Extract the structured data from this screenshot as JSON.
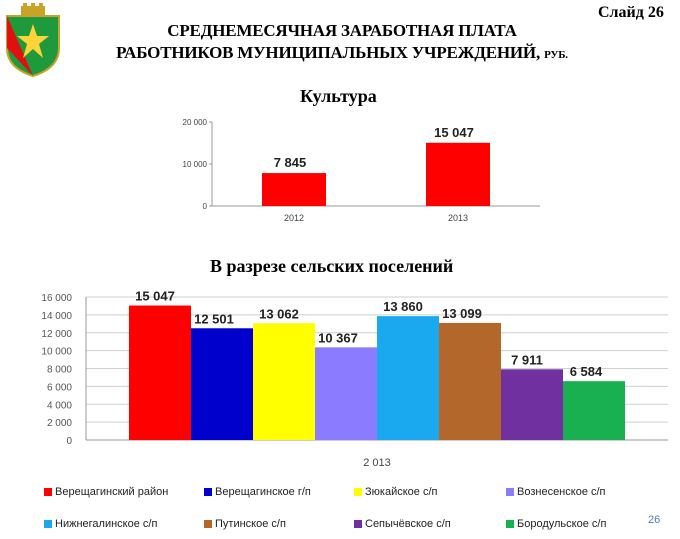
{
  "slide": {
    "label": "Слайд 26",
    "page_number": "26"
  },
  "title": {
    "line1": "СРЕДНЕМЕСЯЧНАЯ ЗАРАБОТНАЯ ПЛАТА",
    "line2": "РАБОТНИКОВ МУНИЦИПАЛЬНЫХ УЧРЕЖДЕНИЙ,",
    "unit": "РУБ."
  },
  "chart_data": [
    {
      "type": "bar",
      "title": "Культура",
      "categories": [
        "2012",
        "2013"
      ],
      "values": [
        7845,
        15047
      ],
      "data_labels": [
        "7 845",
        "15 047"
      ],
      "ylim": [
        0,
        20000
      ],
      "yticks": [
        0,
        10000,
        20000
      ],
      "ytick_labels": [
        "0",
        "10 000",
        "20 000"
      ],
      "color": "#ff0000",
      "grid": false
    },
    {
      "type": "bar",
      "title": "В разрезе сельских поселений",
      "categories": [
        "2 013"
      ],
      "series": [
        {
          "name": "Верещагинский район",
          "values": [
            15047
          ],
          "label": "15 047",
          "color": "#ff0000"
        },
        {
          "name": "Верещагинское г/п",
          "values": [
            12501
          ],
          "label": "12 501",
          "color": "#0000cc"
        },
        {
          "name": "Зюкайское с/п",
          "values": [
            13062
          ],
          "label": "13 062",
          "color": "#ffff00"
        },
        {
          "name": "Вознесенское с/п",
          "values": [
            10367
          ],
          "label": "10 367",
          "color": "#8b7bff"
        },
        {
          "name": "Нижнегалинское с/п",
          "values": [
            13860
          ],
          "label": "13 860",
          "color": "#1aa8ee"
        },
        {
          "name": "Путинское с/п",
          "values": [
            13099
          ],
          "label": "13 099",
          "color": "#b4672a"
        },
        {
          "name": "Сепычёвское с/п",
          "values": [
            7911
          ],
          "label": "7 911",
          "color": "#7030a0"
        },
        {
          "name": "Бородульское с/п",
          "values": [
            6584
          ],
          "label": "6 584",
          "color": "#18b050"
        }
      ],
      "ylim": [
        0,
        16000
      ],
      "yticks": [
        0,
        2000,
        4000,
        6000,
        8000,
        10000,
        12000,
        14000,
        16000
      ],
      "ytick_labels": [
        "0",
        "2 000",
        "4 000",
        "6 000",
        "8 000",
        "10 000",
        "12 000",
        "14 000",
        "16 000"
      ],
      "grid": true,
      "legend_position": "bottom"
    }
  ]
}
